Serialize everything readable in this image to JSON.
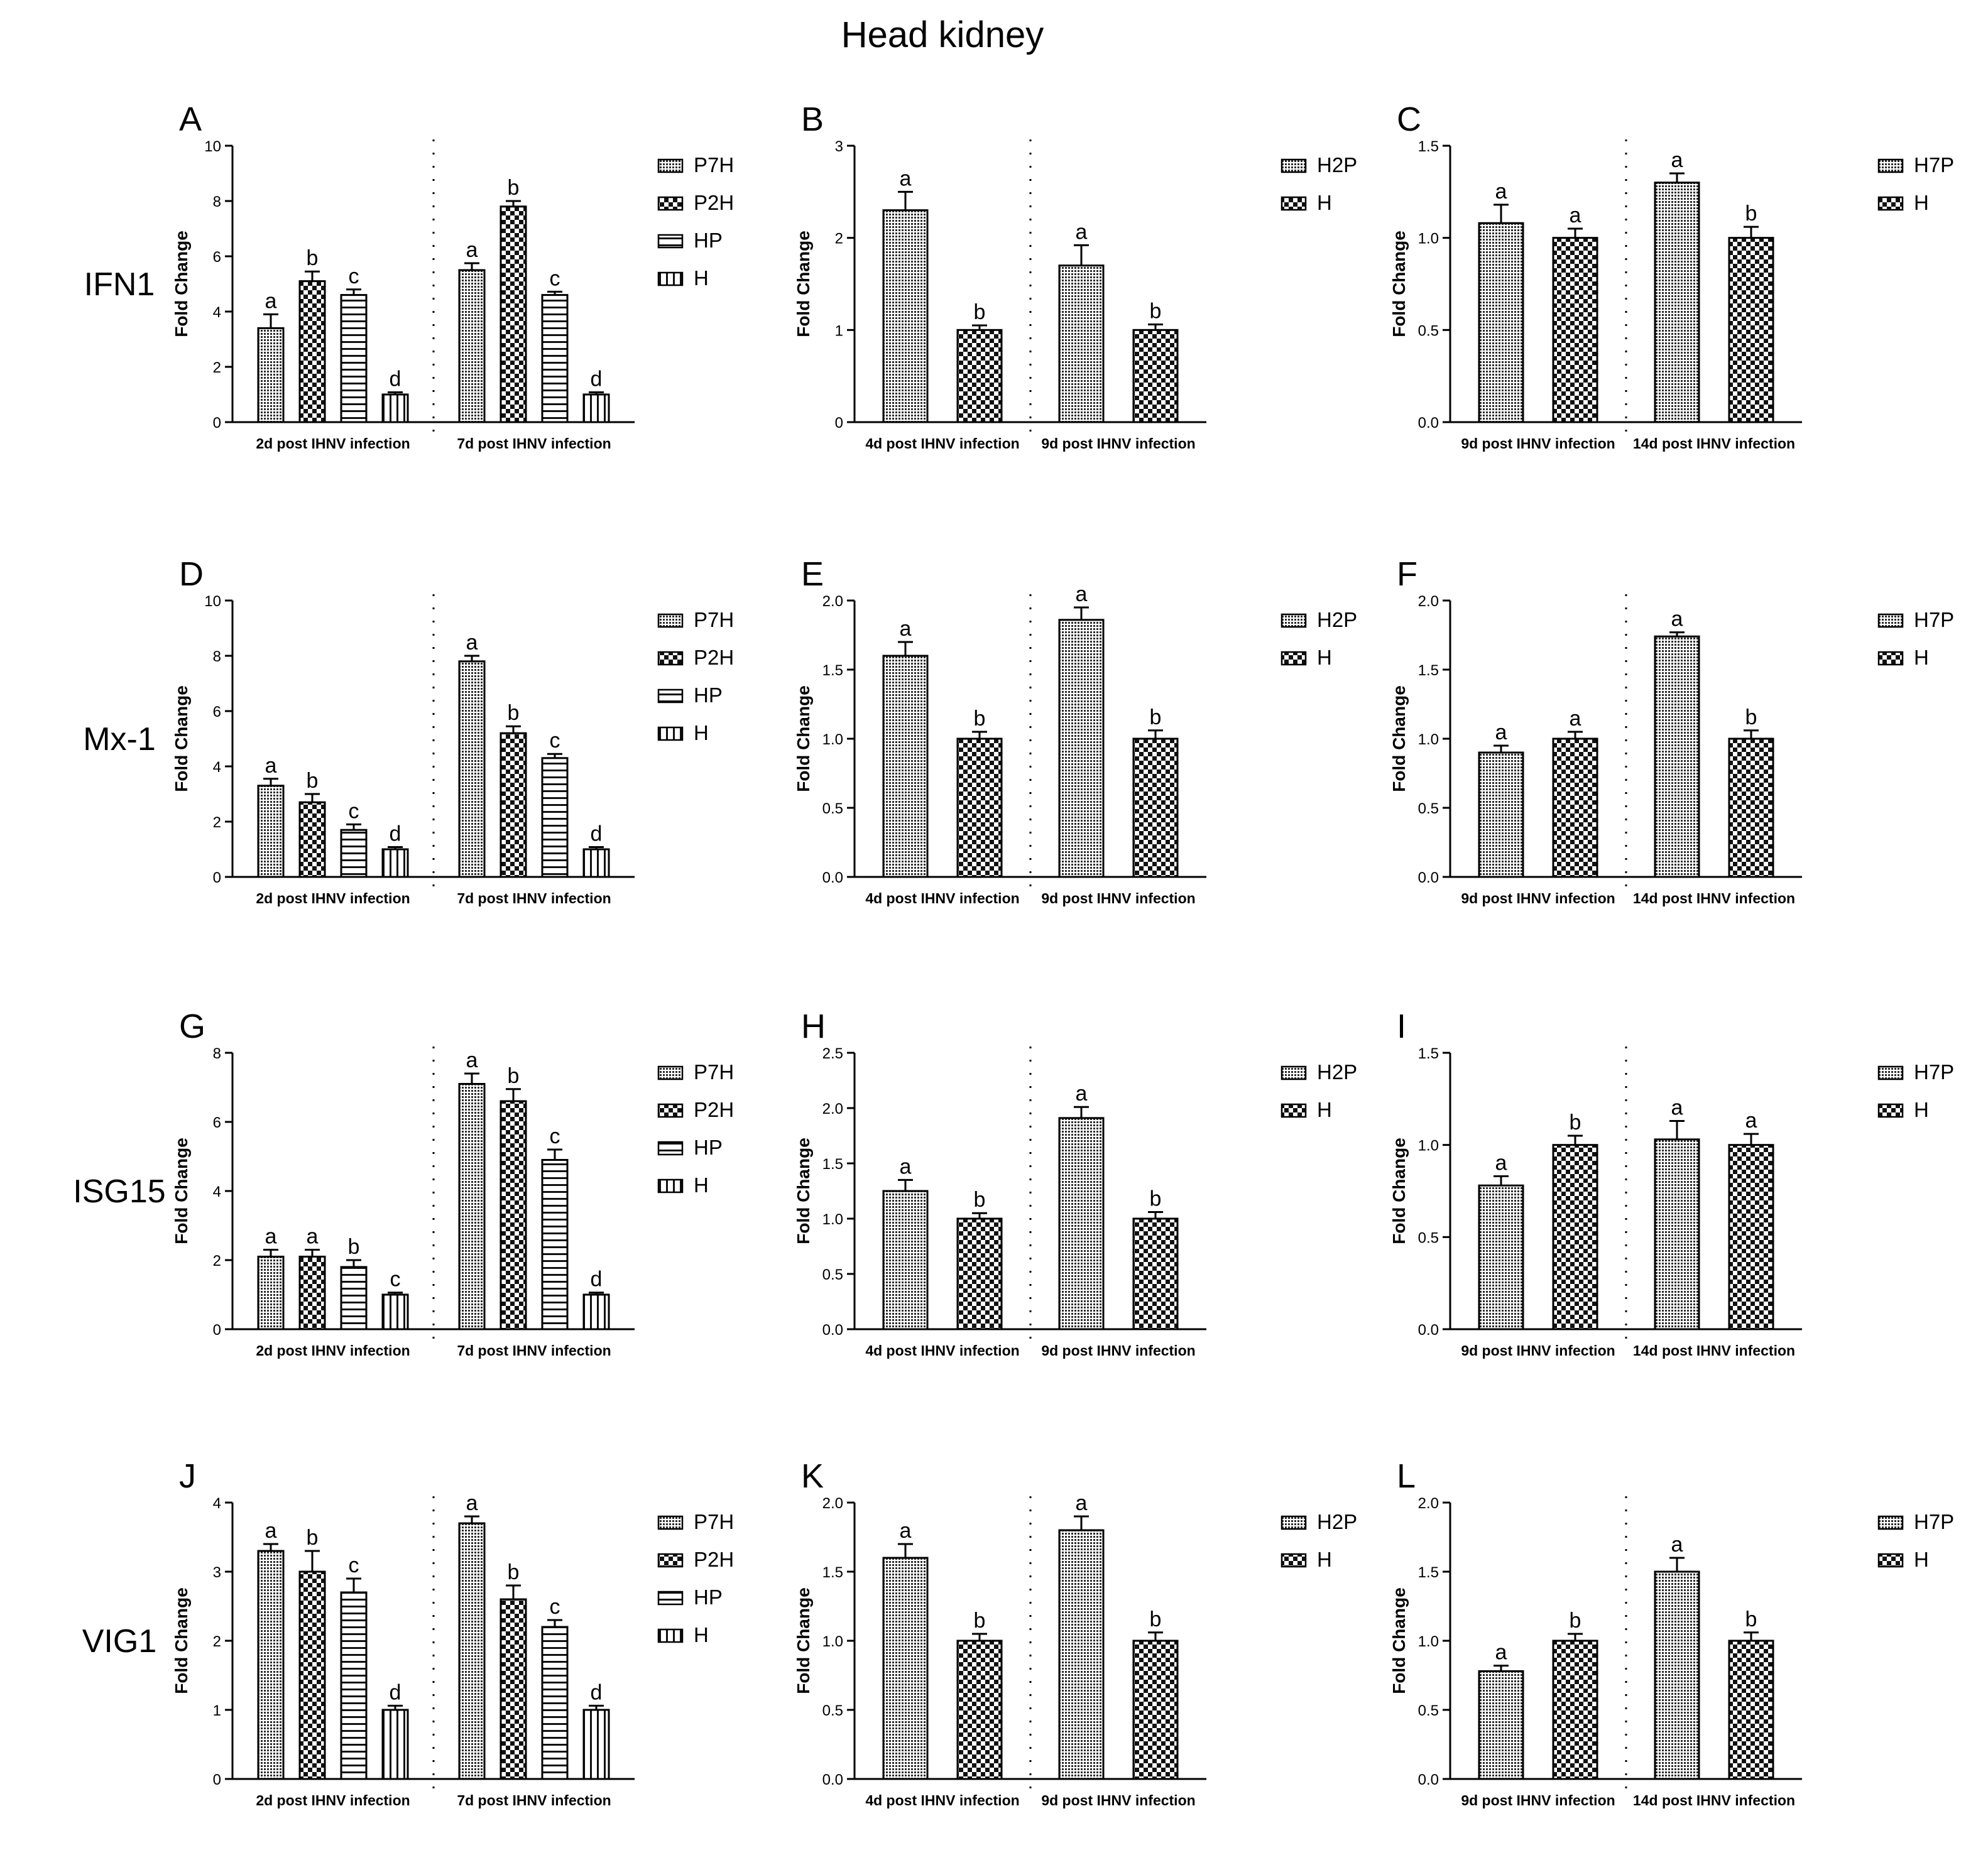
{
  "title": "Head kidney",
  "colors": {
    "ink": "#000000",
    "fill_dark": "#3a3a3a",
    "fill_light": "#ffffff"
  },
  "chart_data": [
    {
      "letter": "A",
      "gene": "IFN1",
      "type": "bar",
      "ylabel": "Fold Change",
      "ylim": [
        0,
        10
      ],
      "yticks": [
        {
          "v": 0,
          "label": "0"
        },
        {
          "v": 2,
          "label": "2"
        },
        {
          "v": 4,
          "label": "4"
        },
        {
          "v": 6,
          "label": "6"
        },
        {
          "v": 8,
          "label": "8"
        },
        {
          "v": 10,
          "label": "10"
        }
      ],
      "groups": [
        "2d post IHNV infection",
        "7d post IHNV infection"
      ],
      "series": [
        {
          "name": "P7H",
          "pattern": "dense-grid",
          "values": [
            3.4,
            5.5
          ],
          "errors": [
            0.5,
            0.25
          ],
          "sig": [
            "a",
            "a"
          ]
        },
        {
          "name": "P2H",
          "pattern": "checker",
          "values": [
            5.1,
            7.8
          ],
          "errors": [
            0.35,
            0.2
          ],
          "sig": [
            "b",
            "b"
          ]
        },
        {
          "name": "HP",
          "pattern": "hlines",
          "values": [
            4.6,
            4.6
          ],
          "errors": [
            0.2,
            0.12
          ],
          "sig": [
            "c",
            "c"
          ]
        },
        {
          "name": "H",
          "pattern": "vlines",
          "values": [
            1.0,
            1.0
          ],
          "errors": [
            0.08,
            0.08
          ],
          "sig": [
            "d",
            "d"
          ]
        }
      ]
    },
    {
      "letter": "B",
      "type": "bar",
      "ylabel": "Fold Change",
      "ylim": [
        0,
        3
      ],
      "yticks": [
        {
          "v": 0,
          "label": "0"
        },
        {
          "v": 1,
          "label": "1"
        },
        {
          "v": 2,
          "label": "2"
        },
        {
          "v": 3,
          "label": "3"
        }
      ],
      "groups": [
        "4d post IHNV infection",
        "9d post IHNV infection"
      ],
      "series": [
        {
          "name": "H2P",
          "pattern": "dense-grid",
          "values": [
            2.3,
            1.7
          ],
          "errors": [
            0.2,
            0.22
          ],
          "sig": [
            "a",
            "a"
          ]
        },
        {
          "name": "H",
          "pattern": "checker",
          "values": [
            1.0,
            1.0
          ],
          "errors": [
            0.05,
            0.06
          ],
          "sig": [
            "b",
            "b"
          ]
        }
      ]
    },
    {
      "letter": "C",
      "type": "bar",
      "ylabel": "Fold Change",
      "ylim": [
        0,
        1.5
      ],
      "yticks": [
        {
          "v": 0,
          "label": "0.0"
        },
        {
          "v": 0.5,
          "label": "0.5"
        },
        {
          "v": 1,
          "label": "1.0"
        },
        {
          "v": 1.5,
          "label": "1.5"
        }
      ],
      "groups": [
        "9d post IHNV infection",
        "14d post IHNV infection"
      ],
      "series": [
        {
          "name": "H7P",
          "pattern": "dense-grid",
          "values": [
            1.08,
            1.3
          ],
          "errors": [
            0.1,
            0.05
          ],
          "sig": [
            "a",
            "a"
          ]
        },
        {
          "name": "H",
          "pattern": "checker",
          "values": [
            1.0,
            1.0
          ],
          "errors": [
            0.05,
            0.06
          ],
          "sig": [
            "a",
            "b"
          ]
        }
      ]
    },
    {
      "letter": "D",
      "gene": "Mx-1",
      "type": "bar",
      "ylabel": "Fold Change",
      "ylim": [
        0,
        10
      ],
      "yticks": [
        {
          "v": 0,
          "label": "0"
        },
        {
          "v": 2,
          "label": "2"
        },
        {
          "v": 4,
          "label": "4"
        },
        {
          "v": 6,
          "label": "6"
        },
        {
          "v": 8,
          "label": "8"
        },
        {
          "v": 10,
          "label": "10"
        }
      ],
      "groups": [
        "2d post IHNV infection",
        "7d post IHNV infection"
      ],
      "series": [
        {
          "name": "P7H",
          "pattern": "dense-grid",
          "values": [
            3.3,
            7.8
          ],
          "errors": [
            0.25,
            0.2
          ],
          "sig": [
            "a",
            "a"
          ]
        },
        {
          "name": "P2H",
          "pattern": "checker",
          "values": [
            2.7,
            5.2
          ],
          "errors": [
            0.3,
            0.25
          ],
          "sig": [
            "b",
            "b"
          ]
        },
        {
          "name": "HP",
          "pattern": "hlines",
          "values": [
            1.7,
            4.3
          ],
          "errors": [
            0.2,
            0.15
          ],
          "sig": [
            "c",
            "c"
          ]
        },
        {
          "name": "H",
          "pattern": "vlines",
          "values": [
            1.0,
            1.0
          ],
          "errors": [
            0.08,
            0.08
          ],
          "sig": [
            "d",
            "d"
          ]
        }
      ]
    },
    {
      "letter": "E",
      "type": "bar",
      "ylabel": "Fold Change",
      "ylim": [
        0,
        2
      ],
      "yticks": [
        {
          "v": 0,
          "label": "0.0"
        },
        {
          "v": 0.5,
          "label": "0.5"
        },
        {
          "v": 1,
          "label": "1.0"
        },
        {
          "v": 1.5,
          "label": "1.5"
        },
        {
          "v": 2,
          "label": "2.0"
        }
      ],
      "groups": [
        "4d post IHNV infection",
        "9d post IHNV infection"
      ],
      "series": [
        {
          "name": "H2P",
          "pattern": "dense-grid",
          "values": [
            1.6,
            1.86
          ],
          "errors": [
            0.1,
            0.09
          ],
          "sig": [
            "a",
            "a"
          ]
        },
        {
          "name": "H",
          "pattern": "checker",
          "values": [
            1.0,
            1.0
          ],
          "errors": [
            0.05,
            0.06
          ],
          "sig": [
            "b",
            "b"
          ]
        }
      ]
    },
    {
      "letter": "F",
      "type": "bar",
      "ylabel": "Fold Change",
      "ylim": [
        0,
        2
      ],
      "yticks": [
        {
          "v": 0,
          "label": "0.0"
        },
        {
          "v": 0.5,
          "label": "0.5"
        },
        {
          "v": 1,
          "label": "1.0"
        },
        {
          "v": 1.5,
          "label": "1.5"
        },
        {
          "v": 2,
          "label": "2.0"
        }
      ],
      "groups": [
        "9d post IHNV infection",
        "14d post IHNV infection"
      ],
      "series": [
        {
          "name": "H7P",
          "pattern": "dense-grid",
          "values": [
            0.9,
            1.74
          ],
          "errors": [
            0.05,
            0.03
          ],
          "sig": [
            "a",
            "a"
          ]
        },
        {
          "name": "H",
          "pattern": "checker",
          "values": [
            1.0,
            1.0
          ],
          "errors": [
            0.05,
            0.06
          ],
          "sig": [
            "a",
            "b"
          ]
        }
      ]
    },
    {
      "letter": "G",
      "gene": "ISG15",
      "type": "bar",
      "ylabel": "Fold Change",
      "ylim": [
        0,
        8
      ],
      "yticks": [
        {
          "v": 0,
          "label": "0"
        },
        {
          "v": 2,
          "label": "2"
        },
        {
          "v": 4,
          "label": "4"
        },
        {
          "v": 6,
          "label": "6"
        },
        {
          "v": 8,
          "label": "8"
        }
      ],
      "groups": [
        "2d post IHNV infection",
        "7d post IHNV infection"
      ],
      "series": [
        {
          "name": "P7H",
          "pattern": "dense-grid",
          "values": [
            2.1,
            7.1
          ],
          "errors": [
            0.2,
            0.3
          ],
          "sig": [
            "a",
            "a"
          ]
        },
        {
          "name": "P2H",
          "pattern": "checker",
          "values": [
            2.1,
            6.6
          ],
          "errors": [
            0.2,
            0.35
          ],
          "sig": [
            "a",
            "b"
          ]
        },
        {
          "name": "HP",
          "pattern": "hlines",
          "values": [
            1.8,
            4.9
          ],
          "errors": [
            0.2,
            0.3
          ],
          "sig": [
            "b",
            "c"
          ]
        },
        {
          "name": "H",
          "pattern": "vlines",
          "values": [
            1.0,
            1.0
          ],
          "errors": [
            0.06,
            0.06
          ],
          "sig": [
            "c",
            "d"
          ]
        }
      ]
    },
    {
      "letter": "H",
      "type": "bar",
      "ylabel": "Fold Change",
      "ylim": [
        0,
        2.5
      ],
      "yticks": [
        {
          "v": 0,
          "label": "0.0"
        },
        {
          "v": 0.5,
          "label": "0.5"
        },
        {
          "v": 1,
          "label": "1.0"
        },
        {
          "v": 1.5,
          "label": "1.5"
        },
        {
          "v": 2,
          "label": "2.0"
        },
        {
          "v": 2.5,
          "label": "2.5"
        }
      ],
      "groups": [
        "4d post IHNV infection",
        "9d post IHNV infection"
      ],
      "series": [
        {
          "name": "H2P",
          "pattern": "dense-grid",
          "values": [
            1.25,
            1.91
          ],
          "errors": [
            0.1,
            0.1
          ],
          "sig": [
            "a",
            "a"
          ]
        },
        {
          "name": "H",
          "pattern": "checker",
          "values": [
            1.0,
            1.0
          ],
          "errors": [
            0.05,
            0.06
          ],
          "sig": [
            "b",
            "b"
          ]
        }
      ]
    },
    {
      "letter": "I",
      "type": "bar",
      "ylabel": "Fold Change",
      "ylim": [
        0,
        1.5
      ],
      "yticks": [
        {
          "v": 0,
          "label": "0.0"
        },
        {
          "v": 0.5,
          "label": "0.5"
        },
        {
          "v": 1,
          "label": "1.0"
        },
        {
          "v": 1.5,
          "label": "1.5"
        }
      ],
      "groups": [
        "9d post IHNV infection",
        "14d post IHNV infection"
      ],
      "series": [
        {
          "name": "H7P",
          "pattern": "dense-grid",
          "values": [
            0.78,
            1.03
          ],
          "errors": [
            0.05,
            0.1
          ],
          "sig": [
            "a",
            "a"
          ]
        },
        {
          "name": "H",
          "pattern": "checker",
          "values": [
            1.0,
            1.0
          ],
          "errors": [
            0.05,
            0.06
          ],
          "sig": [
            "b",
            "a"
          ]
        }
      ]
    },
    {
      "letter": "J",
      "gene": "VIG1",
      "type": "bar",
      "ylabel": "Fold Change",
      "ylim": [
        0,
        4
      ],
      "yticks": [
        {
          "v": 0,
          "label": "0"
        },
        {
          "v": 1,
          "label": "1"
        },
        {
          "v": 2,
          "label": "2"
        },
        {
          "v": 3,
          "label": "3"
        },
        {
          "v": 4,
          "label": "4"
        }
      ],
      "groups": [
        "2d post IHNV infection",
        "7d post IHNV infection"
      ],
      "series": [
        {
          "name": "P7H",
          "pattern": "dense-grid",
          "values": [
            3.3,
            3.7
          ],
          "errors": [
            0.1,
            0.1
          ],
          "sig": [
            "a",
            "a"
          ]
        },
        {
          "name": "P2H",
          "pattern": "checker",
          "values": [
            3.0,
            2.6
          ],
          "errors": [
            0.3,
            0.2
          ],
          "sig": [
            "b",
            "b"
          ]
        },
        {
          "name": "HP",
          "pattern": "hlines",
          "values": [
            2.7,
            2.2
          ],
          "errors": [
            0.2,
            0.1
          ],
          "sig": [
            "c",
            "c"
          ]
        },
        {
          "name": "H",
          "pattern": "vlines",
          "values": [
            1.0,
            1.0
          ],
          "errors": [
            0.06,
            0.06
          ],
          "sig": [
            "d",
            "d"
          ]
        }
      ]
    },
    {
      "letter": "K",
      "type": "bar",
      "ylabel": "Fold Change",
      "ylim": [
        0,
        2
      ],
      "yticks": [
        {
          "v": 0,
          "label": "0.0"
        },
        {
          "v": 0.5,
          "label": "0.5"
        },
        {
          "v": 1,
          "label": "1.0"
        },
        {
          "v": 1.5,
          "label": "1.5"
        },
        {
          "v": 2,
          "label": "2.0"
        }
      ],
      "groups": [
        "4d post IHNV infection",
        "9d post IHNV infection"
      ],
      "series": [
        {
          "name": "H2P",
          "pattern": "dense-grid",
          "values": [
            1.6,
            1.8
          ],
          "errors": [
            0.1,
            0.1
          ],
          "sig": [
            "a",
            "a"
          ]
        },
        {
          "name": "H",
          "pattern": "checker",
          "values": [
            1.0,
            1.0
          ],
          "errors": [
            0.05,
            0.06
          ],
          "sig": [
            "b",
            "b"
          ]
        }
      ]
    },
    {
      "letter": "L",
      "type": "bar",
      "ylabel": "Fold Change",
      "ylim": [
        0,
        2
      ],
      "yticks": [
        {
          "v": 0,
          "label": "0.0"
        },
        {
          "v": 0.5,
          "label": "0.5"
        },
        {
          "v": 1,
          "label": "1.0"
        },
        {
          "v": 1.5,
          "label": "1.5"
        },
        {
          "v": 2,
          "label": "2.0"
        }
      ],
      "groups": [
        "9d post IHNV infection",
        "14d post IHNV infection"
      ],
      "series": [
        {
          "name": "H7P",
          "pattern": "dense-grid",
          "values": [
            0.78,
            1.5
          ],
          "errors": [
            0.04,
            0.1
          ],
          "sig": [
            "a",
            "a"
          ]
        },
        {
          "name": "H",
          "pattern": "checker",
          "values": [
            1.0,
            1.0
          ],
          "errors": [
            0.05,
            0.06
          ],
          "sig": [
            "b",
            "b"
          ]
        }
      ]
    }
  ]
}
